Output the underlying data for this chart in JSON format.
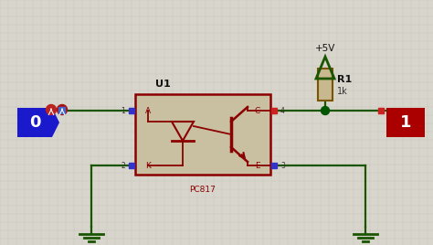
{
  "bg_color": "#d8d5cc",
  "grid_color": "#c8c5bc",
  "wire_color": "#1a5500",
  "dark_red": "#8b0000",
  "tan_fill": "#c8c0a0",
  "blue_node": "#1a1acc",
  "red_node": "#aa0000",
  "blue_pin": "#3333cc",
  "red_pin": "#cc2222",
  "green_dot": "#005500",
  "plus5v_label": "+5V",
  "r1_label": "R1",
  "r1_val": "1k",
  "u1_label": "U1",
  "pc817_label": "PC817",
  "res_color": "#c8b890",
  "res_edge": "#7a5500"
}
